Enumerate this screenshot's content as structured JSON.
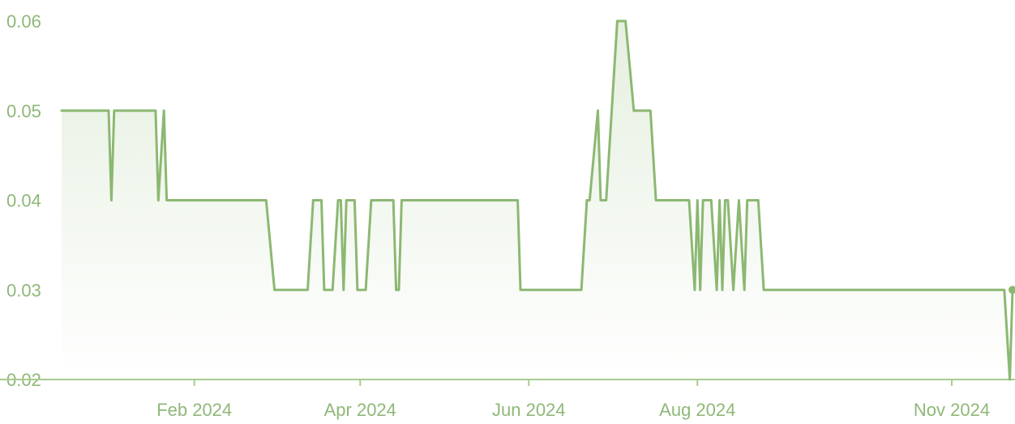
{
  "chart_data": {
    "type": "area",
    "title": "",
    "xlabel": "",
    "ylabel": "",
    "ylim": [
      0.02,
      0.06
    ],
    "y_ticks": [
      "0.02",
      "0.03",
      "0.04",
      "0.05",
      "0.06"
    ],
    "x_ticks": [
      {
        "label": "Feb 2024",
        "date": "2024-02-01"
      },
      {
        "label": "Apr 2024",
        "date": "2024-04-01"
      },
      {
        "label": "Jun 2024",
        "date": "2024-06-01"
      },
      {
        "label": "Aug 2024",
        "date": "2024-08-01"
      },
      {
        "label": "Nov 2024",
        "date": "2024-11-01"
      }
    ],
    "grid": false,
    "series": [
      {
        "points": [
          [
            "2023-12-15",
            0.05
          ],
          [
            "2024-01-01",
            0.05
          ],
          [
            "2024-01-02",
            0.04
          ],
          [
            "2024-01-03",
            0.05
          ],
          [
            "2024-01-18",
            0.05
          ],
          [
            "2024-01-19",
            0.04
          ],
          [
            "2024-01-21",
            0.05
          ],
          [
            "2024-01-22",
            0.04
          ],
          [
            "2024-02-27",
            0.04
          ],
          [
            "2024-03-01",
            0.03
          ],
          [
            "2024-03-13",
            0.03
          ],
          [
            "2024-03-15",
            0.04
          ],
          [
            "2024-03-18",
            0.04
          ],
          [
            "2024-03-19",
            0.03
          ],
          [
            "2024-03-22",
            0.03
          ],
          [
            "2024-03-24",
            0.04
          ],
          [
            "2024-03-25",
            0.04
          ],
          [
            "2024-03-26",
            0.03
          ],
          [
            "2024-03-27",
            0.04
          ],
          [
            "2024-03-30",
            0.04
          ],
          [
            "2024-03-31",
            0.03
          ],
          [
            "2024-04-03",
            0.03
          ],
          [
            "2024-04-05",
            0.04
          ],
          [
            "2024-04-13",
            0.04
          ],
          [
            "2024-04-14",
            0.03
          ],
          [
            "2024-04-15",
            0.03
          ],
          [
            "2024-04-16",
            0.04
          ],
          [
            "2024-05-28",
            0.04
          ],
          [
            "2024-05-29",
            0.03
          ],
          [
            "2024-06-20",
            0.03
          ],
          [
            "2024-06-22",
            0.04
          ],
          [
            "2024-06-23",
            0.04
          ],
          [
            "2024-06-26",
            0.05
          ],
          [
            "2024-06-27",
            0.04
          ],
          [
            "2024-06-29",
            0.04
          ],
          [
            "2024-07-03",
            0.06
          ],
          [
            "2024-07-06",
            0.06
          ],
          [
            "2024-07-09",
            0.05
          ],
          [
            "2024-07-15",
            0.05
          ],
          [
            "2024-07-17",
            0.04
          ],
          [
            "2024-07-29",
            0.04
          ],
          [
            "2024-07-31",
            0.03
          ],
          [
            "2024-08-01",
            0.04
          ],
          [
            "2024-08-02",
            0.03
          ],
          [
            "2024-08-03",
            0.04
          ],
          [
            "2024-08-06",
            0.04
          ],
          [
            "2024-08-08",
            0.03
          ],
          [
            "2024-08-09",
            0.04
          ],
          [
            "2024-08-10",
            0.03
          ],
          [
            "2024-08-11",
            0.04
          ],
          [
            "2024-08-12",
            0.04
          ],
          [
            "2024-08-14",
            0.03
          ],
          [
            "2024-08-16",
            0.04
          ],
          [
            "2024-08-18",
            0.03
          ],
          [
            "2024-08-19",
            0.04
          ],
          [
            "2024-08-23",
            0.04
          ],
          [
            "2024-08-25",
            0.03
          ],
          [
            "2024-11-20",
            0.03
          ],
          [
            "2024-11-22",
            0.02
          ],
          [
            "2024-11-23",
            0.03
          ]
        ]
      }
    ],
    "colors": {
      "line": "#8cb872",
      "fill": "#8cb872",
      "axis": "#a8cc90",
      "text": "#8fb878"
    }
  }
}
